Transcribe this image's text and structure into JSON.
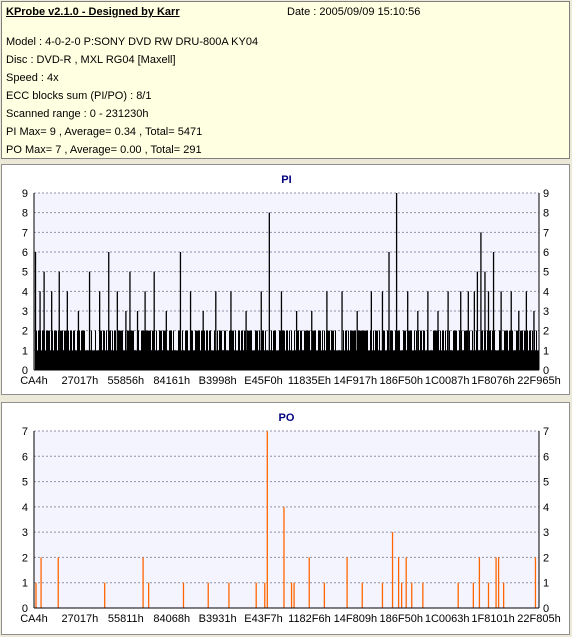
{
  "header": {
    "title": "KProbe v2.1.0 - Designed by Karr",
    "date": "Date : 2005/09/09 15:10:56",
    "lines": [
      "Model : 4-0-2-0 P:SONY    DVD RW DRU-800A  KY04",
      "Disc : DVD-R  , MXL RG04 [Maxell]",
      "Speed : 4x",
      "ECC blocks sum (PI/PO) : 8/1",
      "Scanned range : 0 - 231230h",
      "PI Max= 9 , Average= 0.34 , Total= 5471",
      "PO Max= 7 , Average= 0.00 , Total= 291"
    ]
  },
  "colors": {
    "panel_bg": "#ece9d8",
    "info_bg": "#ffffe1",
    "plot_bg": "#f4f4ff",
    "pi_color": "#000000",
    "po_color": "#ff6600",
    "title_color": "#000080"
  },
  "chart_data": [
    {
      "type": "bar",
      "title": "PI",
      "ylim": [
        0,
        9
      ],
      "yticks": [
        0,
        1,
        2,
        3,
        4,
        5,
        6,
        7,
        8,
        9
      ],
      "grid": true,
      "x_tick_labels": [
        "CA4h",
        "27017h",
        "55856h",
        "84161h",
        "B3998h",
        "E45F0h",
        "11835Eh",
        "14F917h",
        "186F50h",
        "1C0087h",
        "1F8076h",
        "22F965h"
      ],
      "spikes": [
        {
          "x": 0.003,
          "v": 6
        },
        {
          "x": 0.012,
          "v": 4
        },
        {
          "x": 0.02,
          "v": 5
        },
        {
          "x": 0.035,
          "v": 4
        },
        {
          "x": 0.05,
          "v": 5
        },
        {
          "x": 0.066,
          "v": 4
        },
        {
          "x": 0.088,
          "v": 3
        },
        {
          "x": 0.11,
          "v": 5
        },
        {
          "x": 0.13,
          "v": 4
        },
        {
          "x": 0.148,
          "v": 6
        },
        {
          "x": 0.165,
          "v": 4
        },
        {
          "x": 0.182,
          "v": 3
        },
        {
          "x": 0.19,
          "v": 5
        },
        {
          "x": 0.205,
          "v": 3
        },
        {
          "x": 0.22,
          "v": 4
        },
        {
          "x": 0.238,
          "v": 5
        },
        {
          "x": 0.262,
          "v": 3
        },
        {
          "x": 0.29,
          "v": 6
        },
        {
          "x": 0.31,
          "v": 4
        },
        {
          "x": 0.335,
          "v": 3
        },
        {
          "x": 0.36,
          "v": 4
        },
        {
          "x": 0.39,
          "v": 4
        },
        {
          "x": 0.42,
          "v": 3
        },
        {
          "x": 0.45,
          "v": 4
        },
        {
          "x": 0.466,
          "v": 8
        },
        {
          "x": 0.49,
          "v": 4
        },
        {
          "x": 0.52,
          "v": 3
        },
        {
          "x": 0.55,
          "v": 3
        },
        {
          "x": 0.58,
          "v": 4
        },
        {
          "x": 0.61,
          "v": 4
        },
        {
          "x": 0.64,
          "v": 3
        },
        {
          "x": 0.668,
          "v": 4
        },
        {
          "x": 0.69,
          "v": 4
        },
        {
          "x": 0.703,
          "v": 6
        },
        {
          "x": 0.718,
          "v": 9
        },
        {
          "x": 0.74,
          "v": 4
        },
        {
          "x": 0.76,
          "v": 3
        },
        {
          "x": 0.78,
          "v": 4
        },
        {
          "x": 0.8,
          "v": 3
        },
        {
          "x": 0.82,
          "v": 4
        },
        {
          "x": 0.845,
          "v": 4
        },
        {
          "x": 0.86,
          "v": 4
        },
        {
          "x": 0.872,
          "v": 4
        },
        {
          "x": 0.878,
          "v": 5
        },
        {
          "x": 0.885,
          "v": 7
        },
        {
          "x": 0.893,
          "v": 5
        },
        {
          "x": 0.9,
          "v": 4
        },
        {
          "x": 0.91,
          "v": 6
        },
        {
          "x": 0.925,
          "v": 4
        },
        {
          "x": 0.945,
          "v": 4
        },
        {
          "x": 0.96,
          "v": 3
        },
        {
          "x": 0.975,
          "v": 4
        },
        {
          "x": 0.99,
          "v": 3
        }
      ]
    },
    {
      "type": "bar",
      "title": "PO",
      "ylim": [
        0,
        7
      ],
      "yticks": [
        0,
        1,
        2,
        3,
        4,
        5,
        6,
        7
      ],
      "grid": true,
      "x_tick_labels": [
        "CA4h",
        "27017h",
        "55811h",
        "84068h",
        "B3931h",
        "E43F7h",
        "1182F6h",
        "14F809h",
        "186F50h",
        "1C0063h",
        "1F8101h",
        "22F805h"
      ],
      "spikes": [
        {
          "x": 0.004,
          "v": 1
        },
        {
          "x": 0.014,
          "v": 2
        },
        {
          "x": 0.048,
          "v": 2
        },
        {
          "x": 0.14,
          "v": 1
        },
        {
          "x": 0.216,
          "v": 2
        },
        {
          "x": 0.227,
          "v": 1
        },
        {
          "x": 0.296,
          "v": 1
        },
        {
          "x": 0.345,
          "v": 1
        },
        {
          "x": 0.386,
          "v": 1
        },
        {
          "x": 0.44,
          "v": 1
        },
        {
          "x": 0.457,
          "v": 1
        },
        {
          "x": 0.462,
          "v": 7
        },
        {
          "x": 0.495,
          "v": 4
        },
        {
          "x": 0.51,
          "v": 1
        },
        {
          "x": 0.515,
          "v": 1
        },
        {
          "x": 0.545,
          "v": 2
        },
        {
          "x": 0.575,
          "v": 1
        },
        {
          "x": 0.62,
          "v": 2
        },
        {
          "x": 0.65,
          "v": 1
        },
        {
          "x": 0.69,
          "v": 1
        },
        {
          "x": 0.71,
          "v": 3
        },
        {
          "x": 0.722,
          "v": 2
        },
        {
          "x": 0.728,
          "v": 1
        },
        {
          "x": 0.737,
          "v": 2
        },
        {
          "x": 0.748,
          "v": 1
        },
        {
          "x": 0.77,
          "v": 1
        },
        {
          "x": 0.84,
          "v": 1
        },
        {
          "x": 0.87,
          "v": 1
        },
        {
          "x": 0.882,
          "v": 2
        },
        {
          "x": 0.9,
          "v": 1
        },
        {
          "x": 0.915,
          "v": 2
        },
        {
          "x": 0.92,
          "v": 2
        },
        {
          "x": 0.93,
          "v": 1
        },
        {
          "x": 0.993,
          "v": 2
        }
      ]
    }
  ]
}
